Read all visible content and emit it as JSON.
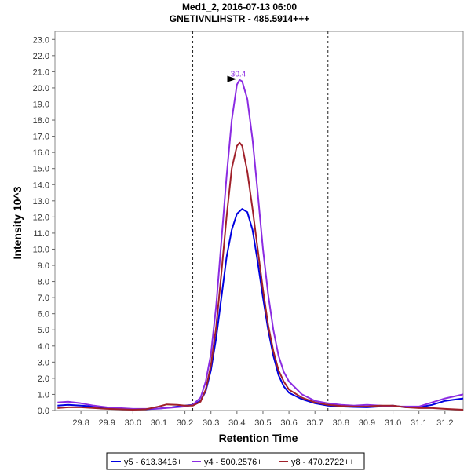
{
  "chart_data": {
    "type": "line",
    "title": "Med1_2, 2016-07-13 06:00",
    "subtitle": "GNETIVNLIHSTR - 485.5914+++",
    "xlabel": "Retention Time",
    "ylabel": "Intensity 10^3",
    "xlim": [
      29.7,
      31.27
    ],
    "ylim": [
      0,
      23.5
    ],
    "x_ticks": [
      "29.8",
      "29.9",
      "30.0",
      "30.1",
      "30.2",
      "30.3",
      "30.4",
      "30.5",
      "30.6",
      "30.7",
      "30.8",
      "30.9",
      "31.0",
      "31.1",
      "31.2"
    ],
    "y_ticks": [
      "0.0",
      "1.0",
      "2.0",
      "3.0",
      "4.0",
      "5.0",
      "6.0",
      "7.0",
      "8.0",
      "9.0",
      "10.0",
      "11.0",
      "12.0",
      "13.0",
      "14.0",
      "15.0",
      "16.0",
      "17.0",
      "18.0",
      "19.0",
      "20.0",
      "21.0",
      "22.0",
      "23.0"
    ],
    "integration_bounds": [
      30.23,
      30.75
    ],
    "peak_annotation": {
      "label": "30.4",
      "x": 30.405,
      "y": 20.5,
      "color": "#8b2be2"
    },
    "legend_position": "bottom",
    "series": [
      {
        "name": "y5 - 613.3416+",
        "color": "#0000e0",
        "points": [
          [
            29.71,
            0.3
          ],
          [
            29.75,
            0.35
          ],
          [
            29.8,
            0.3
          ],
          [
            29.85,
            0.25
          ],
          [
            29.9,
            0.15
          ],
          [
            29.95,
            0.1
          ],
          [
            30.0,
            0.08
          ],
          [
            30.05,
            0.08
          ],
          [
            30.1,
            0.12
          ],
          [
            30.15,
            0.2
          ],
          [
            30.2,
            0.3
          ],
          [
            30.23,
            0.35
          ],
          [
            30.26,
            0.6
          ],
          [
            30.28,
            1.2
          ],
          [
            30.3,
            2.5
          ],
          [
            30.32,
            4.5
          ],
          [
            30.34,
            7.0
          ],
          [
            30.36,
            9.5
          ],
          [
            30.38,
            11.2
          ],
          [
            30.4,
            12.2
          ],
          [
            30.42,
            12.5
          ],
          [
            30.44,
            12.3
          ],
          [
            30.46,
            11.2
          ],
          [
            30.48,
            9.2
          ],
          [
            30.5,
            7.0
          ],
          [
            30.52,
            5.0
          ],
          [
            30.54,
            3.4
          ],
          [
            30.56,
            2.2
          ],
          [
            30.58,
            1.5
          ],
          [
            30.6,
            1.1
          ],
          [
            30.65,
            0.7
          ],
          [
            30.7,
            0.45
          ],
          [
            30.75,
            0.3
          ],
          [
            30.8,
            0.25
          ],
          [
            30.85,
            0.22
          ],
          [
            30.9,
            0.2
          ],
          [
            30.95,
            0.25
          ],
          [
            31.0,
            0.3
          ],
          [
            31.05,
            0.2
          ],
          [
            31.1,
            0.2
          ],
          [
            31.15,
            0.35
          ],
          [
            31.2,
            0.6
          ],
          [
            31.27,
            0.75
          ]
        ]
      },
      {
        "name": "y4 - 500.2576+",
        "color": "#8b2be2",
        "points": [
          [
            29.71,
            0.5
          ],
          [
            29.75,
            0.55
          ],
          [
            29.8,
            0.45
          ],
          [
            29.85,
            0.3
          ],
          [
            29.9,
            0.2
          ],
          [
            29.95,
            0.15
          ],
          [
            30.0,
            0.1
          ],
          [
            30.05,
            0.1
          ],
          [
            30.1,
            0.12
          ],
          [
            30.15,
            0.18
          ],
          [
            30.2,
            0.25
          ],
          [
            30.23,
            0.35
          ],
          [
            30.26,
            0.8
          ],
          [
            30.28,
            1.8
          ],
          [
            30.3,
            3.5
          ],
          [
            30.32,
            6.5
          ],
          [
            30.34,
            10.5
          ],
          [
            30.36,
            14.5
          ],
          [
            30.38,
            18.0
          ],
          [
            30.4,
            20.2
          ],
          [
            30.41,
            20.5
          ],
          [
            30.42,
            20.4
          ],
          [
            30.44,
            19.3
          ],
          [
            30.46,
            16.8
          ],
          [
            30.48,
            13.5
          ],
          [
            30.5,
            10.0
          ],
          [
            30.52,
            7.2
          ],
          [
            30.54,
            5.0
          ],
          [
            30.56,
            3.4
          ],
          [
            30.58,
            2.4
          ],
          [
            30.6,
            1.8
          ],
          [
            30.65,
            1.0
          ],
          [
            30.7,
            0.6
          ],
          [
            30.75,
            0.45
          ],
          [
            30.8,
            0.35
          ],
          [
            30.85,
            0.3
          ],
          [
            30.9,
            0.35
          ],
          [
            30.95,
            0.3
          ],
          [
            31.0,
            0.25
          ],
          [
            31.05,
            0.25
          ],
          [
            31.1,
            0.25
          ],
          [
            31.15,
            0.5
          ],
          [
            31.2,
            0.75
          ],
          [
            31.27,
            1.0
          ]
        ]
      },
      {
        "name": "y8 - 470.2722++",
        "color": "#a0202a",
        "points": [
          [
            29.71,
            0.15
          ],
          [
            29.75,
            0.2
          ],
          [
            29.8,
            0.2
          ],
          [
            29.85,
            0.15
          ],
          [
            29.9,
            0.1
          ],
          [
            29.95,
            0.08
          ],
          [
            30.0,
            0.05
          ],
          [
            30.05,
            0.08
          ],
          [
            30.1,
            0.25
          ],
          [
            30.13,
            0.38
          ],
          [
            30.17,
            0.35
          ],
          [
            30.2,
            0.3
          ],
          [
            30.23,
            0.3
          ],
          [
            30.26,
            0.55
          ],
          [
            30.28,
            1.3
          ],
          [
            30.3,
            2.8
          ],
          [
            30.32,
            5.2
          ],
          [
            30.34,
            8.5
          ],
          [
            30.36,
            12.0
          ],
          [
            30.38,
            15.0
          ],
          [
            30.4,
            16.4
          ],
          [
            30.41,
            16.6
          ],
          [
            30.42,
            16.4
          ],
          [
            30.44,
            14.8
          ],
          [
            30.46,
            12.5
          ],
          [
            30.48,
            10.0
          ],
          [
            30.5,
            7.5
          ],
          [
            30.52,
            5.3
          ],
          [
            30.54,
            3.7
          ],
          [
            30.56,
            2.5
          ],
          [
            30.58,
            1.8
          ],
          [
            30.6,
            1.3
          ],
          [
            30.65,
            0.8
          ],
          [
            30.7,
            0.5
          ],
          [
            30.75,
            0.35
          ],
          [
            30.8,
            0.28
          ],
          [
            30.85,
            0.25
          ],
          [
            30.9,
            0.25
          ],
          [
            30.95,
            0.3
          ],
          [
            31.0,
            0.3
          ],
          [
            31.05,
            0.2
          ],
          [
            31.1,
            0.15
          ],
          [
            31.15,
            0.15
          ],
          [
            31.2,
            0.1
          ],
          [
            31.27,
            0.05
          ]
        ]
      }
    ]
  }
}
